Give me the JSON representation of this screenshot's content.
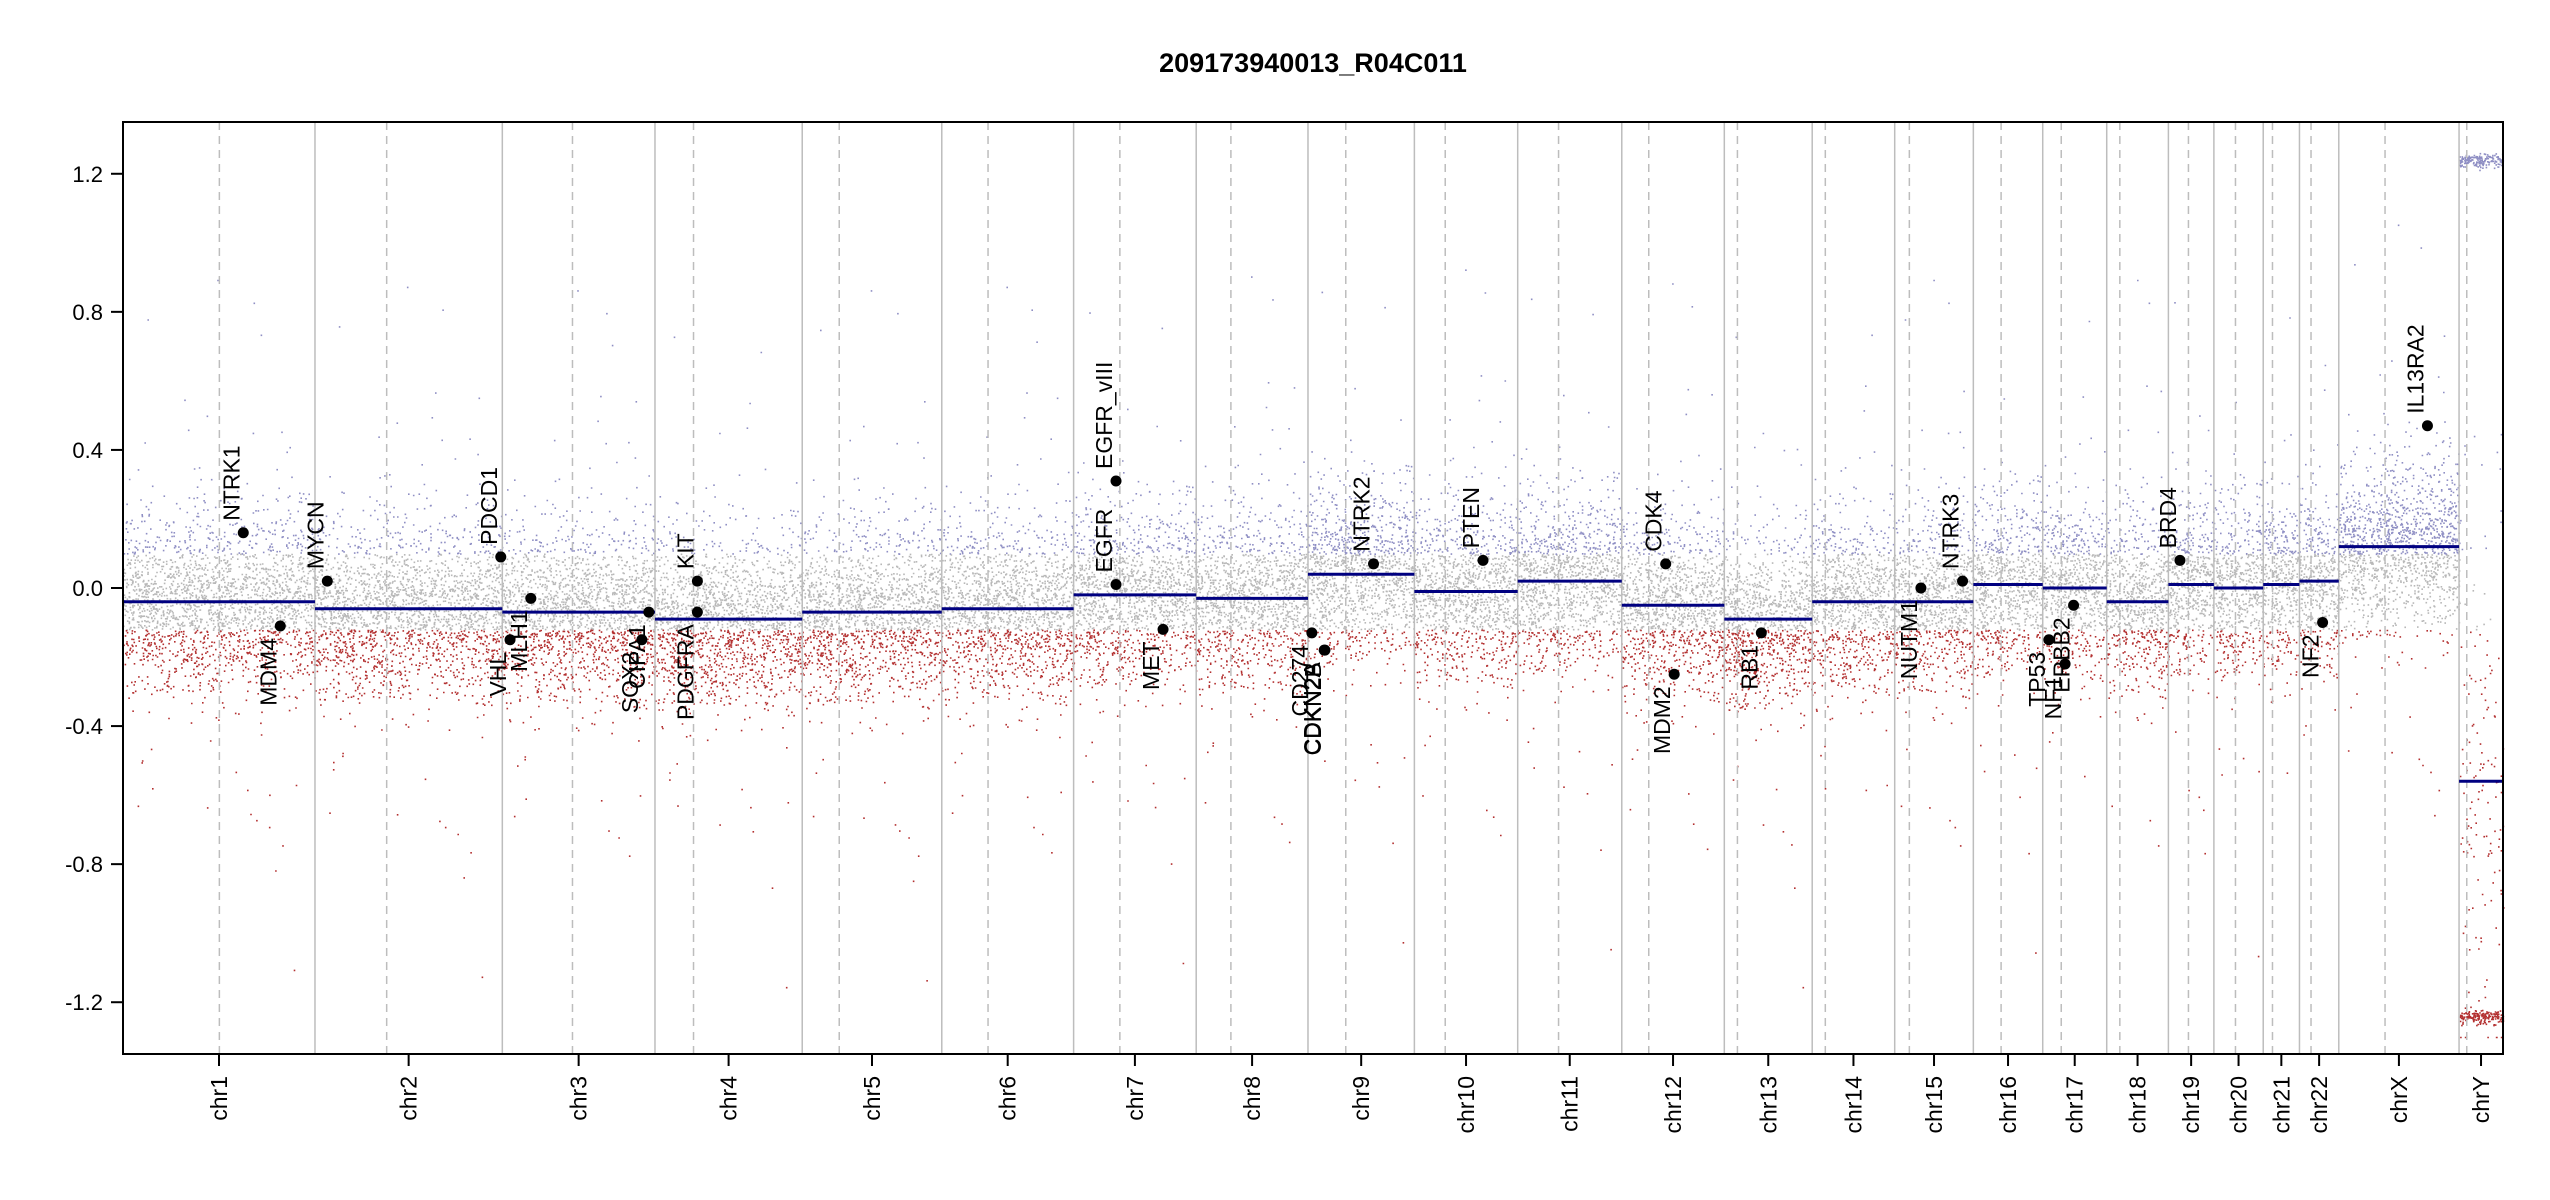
{
  "chart_data": {
    "type": "scatter",
    "title": "209173940013_R04C011",
    "xlabel": "",
    "ylabel": "",
    "ylim": [
      -1.35,
      1.35
    ],
    "yticks": [
      "1.2",
      "0.8",
      "0.4",
      "0.0",
      "-0.4",
      "-0.8",
      "-1.2"
    ],
    "ytick_values": [
      1.2,
      0.8,
      0.4,
      0.0,
      -0.4,
      -0.8,
      -1.2
    ],
    "chromosomes": [
      {
        "name": "chr1",
        "len": 249,
        "cen": 125,
        "seg": -0.04
      },
      {
        "name": "chr2",
        "len": 243,
        "cen": 93,
        "seg": -0.06
      },
      {
        "name": "chr3",
        "len": 198,
        "cen": 91,
        "seg": -0.07
      },
      {
        "name": "chr4",
        "len": 191,
        "cen": 50,
        "seg": -0.09
      },
      {
        "name": "chr5",
        "len": 181,
        "cen": 48,
        "seg": -0.07
      },
      {
        "name": "chr6",
        "len": 171,
        "cen": 60,
        "seg": -0.06
      },
      {
        "name": "chr7",
        "len": 159,
        "cen": 60,
        "seg": -0.02
      },
      {
        "name": "chr8",
        "len": 145,
        "cen": 45,
        "seg": -0.03
      },
      {
        "name": "chr9",
        "len": 138,
        "cen": 49,
        "seg": 0.04
      },
      {
        "name": "chr10",
        "len": 134,
        "cen": 40,
        "seg": -0.01
      },
      {
        "name": "chr11",
        "len": 135,
        "cen": 53,
        "seg": 0.02
      },
      {
        "name": "chr12",
        "len": 133,
        "cen": 35,
        "seg": -0.05
      },
      {
        "name": "chr13",
        "len": 114,
        "cen": 17,
        "seg": -0.09
      },
      {
        "name": "chr14",
        "len": 107,
        "cen": 17,
        "seg": -0.04
      },
      {
        "name": "chr15",
        "len": 102,
        "cen": 19,
        "seg": -0.04
      },
      {
        "name": "chr16",
        "len": 90,
        "cen": 36,
        "seg": 0.01
      },
      {
        "name": "chr17",
        "len": 83,
        "cen": 24,
        "seg": 0.0
      },
      {
        "name": "chr18",
        "len": 80,
        "cen": 17,
        "seg": -0.04
      },
      {
        "name": "chr19",
        "len": 59,
        "cen": 26,
        "seg": 0.01
      },
      {
        "name": "chr20",
        "len": 64,
        "cen": 28,
        "seg": 0.0
      },
      {
        "name": "chr21",
        "len": 47,
        "cen": 12,
        "seg": 0.01
      },
      {
        "name": "chr22",
        "len": 51,
        "cen": 15,
        "seg": 0.02
      },
      {
        "name": "chrX",
        "len": 156,
        "cen": 60,
        "seg": 0.12
      },
      {
        "name": "chrY",
        "len": 57,
        "cen": 10,
        "seg": -0.56
      }
    ],
    "genes": [
      {
        "name": "NTRK1",
        "chrom": "chr1",
        "pos": 156,
        "value": 0.16,
        "label_side": "above"
      },
      {
        "name": "MDM4",
        "chrom": "chr1",
        "pos": 204,
        "value": -0.11,
        "label_side": "below"
      },
      {
        "name": "MYCN",
        "chrom": "chr2",
        "pos": 16,
        "value": 0.02,
        "label_side": "above"
      },
      {
        "name": "PDCD1",
        "chrom": "chr2",
        "pos": 241,
        "value": 0.09,
        "label_side": "above"
      },
      {
        "name": "VHL",
        "chrom": "chr3",
        "pos": 10,
        "value": -0.15,
        "label_side": "below"
      },
      {
        "name": "MLH1",
        "chrom": "chr3",
        "pos": 37,
        "value": -0.03,
        "label_side": "below"
      },
      {
        "name": "SOX2",
        "chrom": "chr3",
        "pos": 181,
        "value": -0.15,
        "label_side": "below"
      },
      {
        "name": "CIPA1",
        "chrom": "chr3",
        "pos": 190,
        "value": -0.07,
        "label_side": "below"
      },
      {
        "name": "KIT",
        "chrom": "chr4",
        "pos": 55,
        "value": 0.02,
        "label_side": "above"
      },
      {
        "name": "PDGFRA",
        "chrom": "chr4",
        "pos": 55,
        "value": -0.07,
        "label_side": "below"
      },
      {
        "name": "EGFR",
        "chrom": "chr7",
        "pos": 55,
        "value": 0.01,
        "label_side": "above"
      },
      {
        "name": "EGFR_vIII",
        "chrom": "chr7",
        "pos": 55,
        "value": 0.31,
        "label_side": "above"
      },
      {
        "name": "MET",
        "chrom": "chr7",
        "pos": 116,
        "value": -0.12,
        "label_side": "below"
      },
      {
        "name": "CD274",
        "chrom": "chr9",
        "pos": 5,
        "value": -0.13,
        "label_side": "below"
      },
      {
        "name": "CDKN2A",
        "chrom": "chr9",
        "pos": 21,
        "value": -0.18,
        "label_side": "below"
      },
      {
        "name": "CDKN2B",
        "chrom": "chr9",
        "pos": 22,
        "value": -0.18,
        "label_side": "below"
      },
      {
        "name": "NTRK2",
        "chrom": "chr9",
        "pos": 85,
        "value": 0.07,
        "label_side": "above"
      },
      {
        "name": "PTEN",
        "chrom": "chr10",
        "pos": 89,
        "value": 0.08,
        "label_side": "above"
      },
      {
        "name": "CDK4",
        "chrom": "chr12",
        "pos": 57,
        "value": 0.07,
        "label_side": "above"
      },
      {
        "name": "MDM2",
        "chrom": "chr12",
        "pos": 68,
        "value": -0.25,
        "label_side": "below"
      },
      {
        "name": "RB1",
        "chrom": "chr13",
        "pos": 48,
        "value": -0.13,
        "label_side": "below"
      },
      {
        "name": "NUTM1",
        "chrom": "chr15",
        "pos": 34,
        "value": 0.0,
        "label_side": "below"
      },
      {
        "name": "NTRK3",
        "chrom": "chr15",
        "pos": 88,
        "value": 0.02,
        "label_side": "above"
      },
      {
        "name": "TP53",
        "chrom": "chr17",
        "pos": 8,
        "value": -0.15,
        "label_side": "below"
      },
      {
        "name": "NF1",
        "chrom": "chr17",
        "pos": 29,
        "value": -0.22,
        "label_side": "below"
      },
      {
        "name": "ERBB2",
        "chrom": "chr17",
        "pos": 40,
        "value": -0.05,
        "label_side": "below"
      },
      {
        "name": "BRD4",
        "chrom": "chr19",
        "pos": 15,
        "value": 0.08,
        "label_side": "above"
      },
      {
        "name": "NF2",
        "chrom": "chr22",
        "pos": 30,
        "value": -0.1,
        "label_side": "below"
      },
      {
        "name": "IL13RA2",
        "chrom": "chrX",
        "pos": 115,
        "value": 0.47,
        "label_side": "above"
      }
    ],
    "colors": {
      "segment": "#000080",
      "gain": "#8f8fc4",
      "loss": "#b33030",
      "neutral": "#b8b8b8",
      "gene_point": "#000000",
      "boundary": "#bdbdbd",
      "centromere": "#bdbdbd"
    }
  }
}
